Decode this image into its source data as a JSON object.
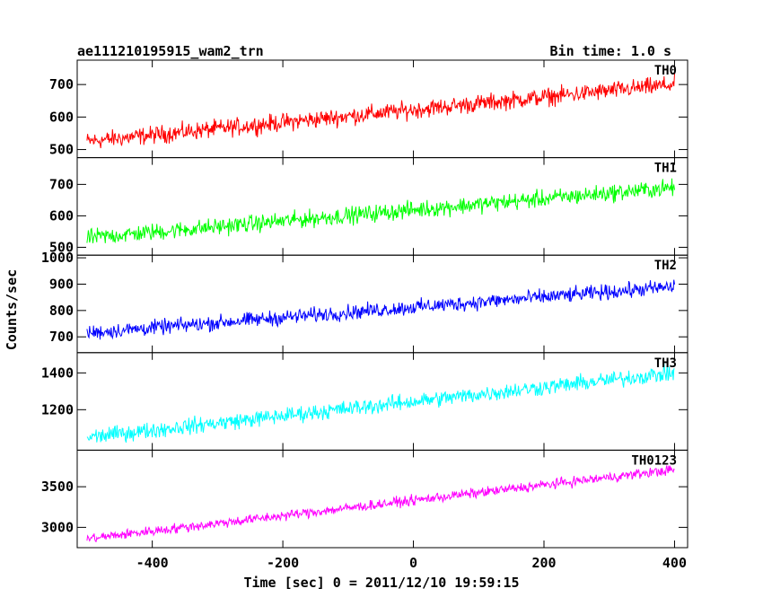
{
  "header": {
    "title": "ae111210195915_wam2_trn",
    "bin_time": "Bin time: 1.0 s"
  },
  "chart_data": {
    "type": "line",
    "title": "ae111210195915_wam2_trn",
    "subtitle": "Bin time: 1.0 s",
    "xlabel": "Time [sec] 0 = 2011/12/10 19:59:15",
    "ylabel": "Counts/sec",
    "xlim": [
      -515,
      420
    ],
    "x_ticks": [
      -400,
      -200,
      0,
      200,
      400
    ],
    "x_range": [
      -500,
      400
    ],
    "x_step": 1,
    "grid": false,
    "panels": [
      {
        "name": "TH0",
        "color": "#ff0000",
        "ylim": [
          475,
          775
        ],
        "y_ticks": [
          500,
          600,
          700
        ],
        "trend": [
          {
            "x": -500,
            "y": 525
          },
          {
            "x": 400,
            "y": 700
          }
        ],
        "noise_amplitude": 40
      },
      {
        "name": "TH1",
        "color": "#00ff00",
        "ylim": [
          475,
          785
        ],
        "y_ticks": [
          500,
          600,
          700
        ],
        "trend": [
          {
            "x": -500,
            "y": 530
          },
          {
            "x": 400,
            "y": 690
          }
        ],
        "noise_amplitude": 40
      },
      {
        "name": "TH2",
        "color": "#0000ff",
        "ylim": [
          640,
          1010
        ],
        "y_ticks": [
          700,
          800,
          900,
          1000
        ],
        "trend": [
          {
            "x": -500,
            "y": 715
          },
          {
            "x": 400,
            "y": 890
          }
        ],
        "noise_amplitude": 42
      },
      {
        "name": "TH3",
        "color": "#00ffff",
        "ylim": [
          980,
          1510
        ],
        "y_ticks": [
          1200,
          1400
        ],
        "trend": [
          {
            "x": -500,
            "y": 1050
          },
          {
            "x": 400,
            "y": 1400
          }
        ],
        "noise_amplitude": 65
      },
      {
        "name": "TH0123",
        "color": "#ff00ff",
        "ylim": [
          2750,
          3950
        ],
        "y_ticks": [
          3000,
          3500
        ],
        "trend": [
          {
            "x": -500,
            "y": 2860
          },
          {
            "x": 400,
            "y": 3710
          }
        ],
        "noise_amplitude": 90
      }
    ]
  }
}
